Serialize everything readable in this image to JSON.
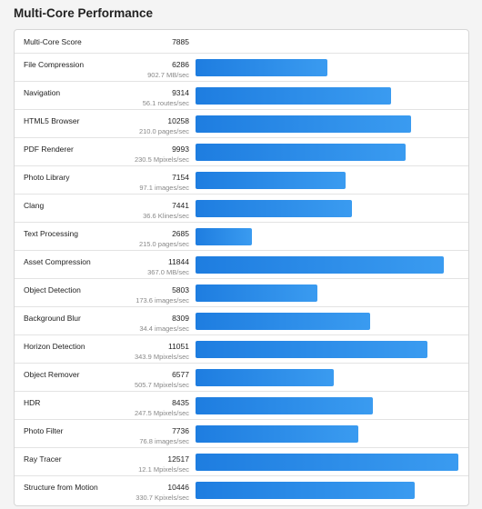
{
  "title": "Multi-Core Performance",
  "score": {
    "label": "Multi-Core Score",
    "value": 7885
  },
  "rows": [
    {
      "name": "File Compression",
      "score": 6286,
      "rate": "902.7 MB/sec"
    },
    {
      "name": "Navigation",
      "score": 9314,
      "rate": "56.1 routes/sec"
    },
    {
      "name": "HTML5 Browser",
      "score": 10258,
      "rate": "210.0 pages/sec"
    },
    {
      "name": "PDF Renderer",
      "score": 9993,
      "rate": "230.5 Mpixels/sec"
    },
    {
      "name": "Photo Library",
      "score": 7154,
      "rate": "97.1 images/sec"
    },
    {
      "name": "Clang",
      "score": 7441,
      "rate": "36.6 Klines/sec"
    },
    {
      "name": "Text Processing",
      "score": 2685,
      "rate": "215.0 pages/sec"
    },
    {
      "name": "Asset Compression",
      "score": 11844,
      "rate": "367.0 MB/sec"
    },
    {
      "name": "Object Detection",
      "score": 5803,
      "rate": "173.6 images/sec"
    },
    {
      "name": "Background Blur",
      "score": 8309,
      "rate": "34.4 images/sec"
    },
    {
      "name": "Horizon Detection",
      "score": 11051,
      "rate": "343.9 Mpixels/sec"
    },
    {
      "name": "Object Remover",
      "score": 6577,
      "rate": "505.7 Mpixels/sec"
    },
    {
      "name": "HDR",
      "score": 8435,
      "rate": "247.5 Mpixels/sec"
    },
    {
      "name": "Photo Filter",
      "score": 7736,
      "rate": "76.8 images/sec"
    },
    {
      "name": "Ray Tracer",
      "score": 12517,
      "rate": "12.1 Mpixels/sec"
    },
    {
      "name": "Structure from Motion",
      "score": 10446,
      "rate": "330.7 Kpixels/sec"
    }
  ]
}
